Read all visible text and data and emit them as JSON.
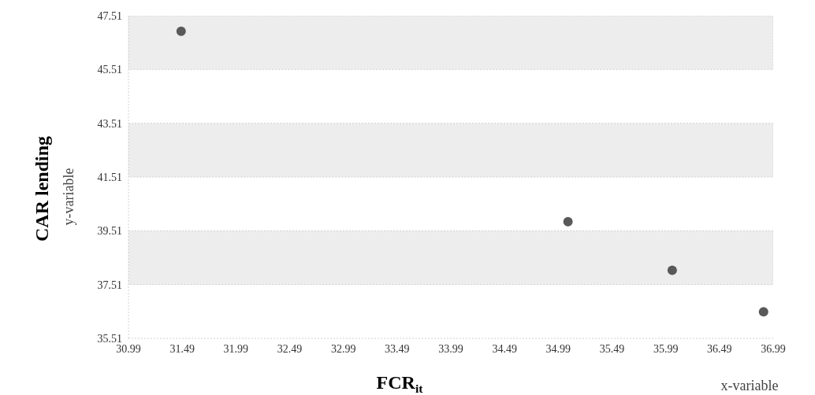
{
  "chart_data": {
    "type": "scatter",
    "xlabel": "FCR$_{it}$",
    "ylabel": "CAR lending",
    "annotations": [
      "y-variable",
      "x-variable"
    ],
    "x": [
      31.48,
      35.08,
      36.05,
      36.9
    ],
    "series": [
      {
        "color": "#595959",
        "values": [
          46.93,
          39.85,
          38.04,
          36.5
        ]
      }
    ],
    "xlim": [
      30.99,
      36.99
    ],
    "xticks": [
      30.99,
      31.49,
      31.99,
      32.49,
      32.99,
      33.49,
      33.99,
      34.49,
      34.99,
      35.49,
      35.99,
      36.49,
      36.99
    ],
    "ylim": [
      35.51,
      47.51
    ],
    "yticks": [
      35.51,
      37.51,
      39.51,
      41.51,
      43.51,
      45.51,
      47.51
    ],
    "bands": [
      {
        "axis": "y",
        "from": 45.51,
        "to": 47.51,
        "color": "#ededed"
      },
      {
        "axis": "y",
        "from": 41.51,
        "to": 43.51,
        "color": "#ededed"
      },
      {
        "axis": "y",
        "from": 37.51,
        "to": 39.51,
        "color": "#ededed"
      }
    ],
    "grid": false,
    "legend": false,
    "marker": "circle"
  }
}
